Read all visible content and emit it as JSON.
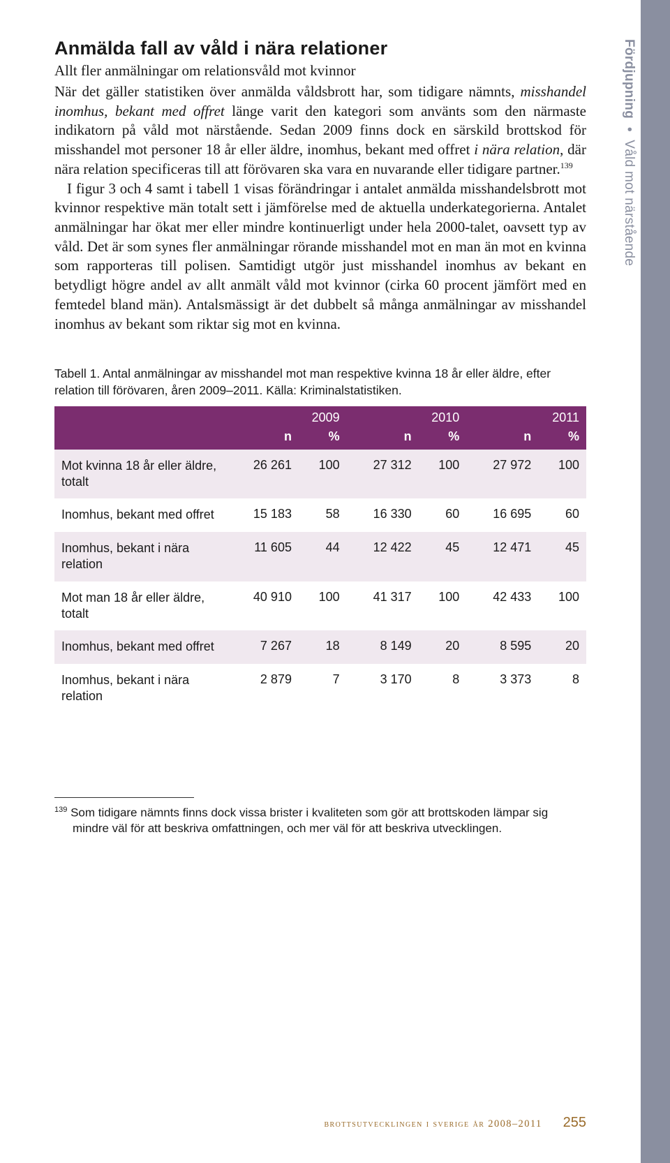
{
  "sidebar": {
    "bold": "Fördjupning",
    "sep": "•",
    "rest": "Våld mot närstående"
  },
  "heading": "Anmälda fall av våld i nära relationer",
  "subheading": "Allt fler anmälningar om relationsvåld mot kvinnor",
  "para1_a": "När det gäller statistiken över anmälda våldsbrott har, som tidigare nämnts, ",
  "para1_b": "misshandel inomhus, bekant med offret",
  "para1_c": " länge varit den kategori som använts som den närmaste indikatorn på våld mot närstående. Sedan 2009 finns dock en särskild brottskod för misshandel mot personer 18 år eller äldre, inomhus, bekant med offret ",
  "para1_d": "i nära relation",
  "para1_e": ", där nära relation specificeras till att förövaren ska vara en nuvarande eller tidigare partner.",
  "fn_ref": "139",
  "para2": "I figur 3 och 4 samt i tabell 1 visas förändringar i antalet anmälda misshandelsbrott mot kvinnor respektive män totalt sett i jämförelse med de aktuella underkategorierna. Antalet anmälningar har ökat mer eller mindre kontinuerligt under hela 2000-talet, oavsett typ av våld. Det är som synes fler anmälningar rörande misshandel mot en man än mot en kvinna som rapporteras till polisen. Samtidigt utgör just misshandel inomhus av bekant en betydligt högre andel av allt anmält våld mot kvinnor (cirka 60 procent jämfört med en femtedel bland män). Antalsmässigt är det dubbelt så många anmälningar av misshandel inomhus av bekant som riktar sig mot en kvinna.",
  "table": {
    "caption": "Tabell 1. Antal anmälningar av misshandel mot man respektive kvinna 18 år eller äldre, efter relation till förövaren, åren 2009–2011. Källa: Kriminalstatistiken.",
    "header_bg": "#7b2d6f",
    "shade_bg": "#f0e8ef",
    "years": [
      "2009",
      "2010",
      "2011"
    ],
    "unit_n": "n",
    "unit_pct": "%",
    "rows": [
      {
        "label": "Mot kvinna 18 år eller äldre, totalt",
        "vals": [
          "26 261",
          "100",
          "27 312",
          "100",
          "27 972",
          "100"
        ],
        "shade": true
      },
      {
        "label": "Inomhus, bekant med offret",
        "vals": [
          "15 183",
          "58",
          "16 330",
          "60",
          "16 695",
          "60"
        ],
        "shade": false
      },
      {
        "label": "Inomhus, bekant i nära relation",
        "vals": [
          "11 605",
          "44",
          "12 422",
          "45",
          "12 471",
          "45"
        ],
        "shade": true
      },
      {
        "label": "Mot man 18 år eller äldre, totalt",
        "vals": [
          "40 910",
          "100",
          "41 317",
          "100",
          "42 433",
          "100"
        ],
        "shade": false
      },
      {
        "label": "Inomhus, bekant med offret",
        "vals": [
          "7 267",
          "18",
          "8 149",
          "20",
          "8 595",
          "20"
        ],
        "shade": true
      },
      {
        "label": "Inomhus, bekant i nära relation",
        "vals": [
          "2 879",
          "7",
          "3 170",
          "8",
          "3 373",
          "8"
        ],
        "shade": false
      }
    ]
  },
  "footnote": {
    "num": "139",
    "text": " Som tidigare nämnts finns dock vissa brister i kvaliteten som gör att brottskoden lämpar sig mindre väl för att beskriva omfattningen, och mer väl för att beskriva utvecklingen."
  },
  "footer": {
    "text": "brottsutvecklingen i sverige år 2008–2011",
    "page": "255"
  }
}
